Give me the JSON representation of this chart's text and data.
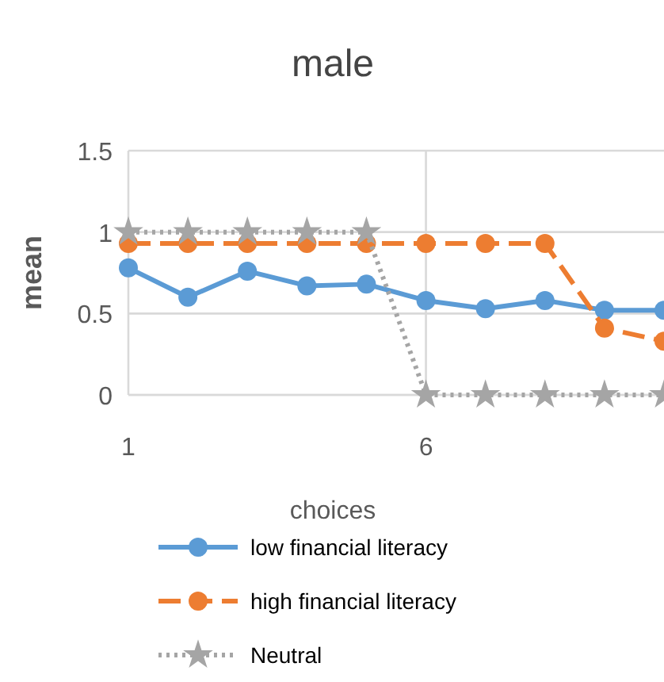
{
  "chart_data": {
    "type": "line",
    "title": "male",
    "xlabel": "choices",
    "ylabel": "mean",
    "x": [
      1,
      2,
      3,
      4,
      5,
      6,
      7,
      8,
      9,
      10
    ],
    "xlim": [
      1,
      10
    ],
    "xticks": [
      1,
      6
    ],
    "ylim": [
      0,
      1.5
    ],
    "yticks": [
      0,
      0.5,
      1,
      1.5
    ],
    "grid": true,
    "legend": "bottom",
    "marker": "circle",
    "series": [
      {
        "name": "low financial literacy",
        "color": "#5b9bd5",
        "line_style": "solid",
        "values": [
          0.78,
          0.6,
          0.76,
          0.67,
          0.68,
          0.58,
          0.53,
          0.58,
          0.52,
          0.52
        ]
      },
      {
        "name": "high financial literacy",
        "color": "#ed7d31",
        "line_style": "dashed",
        "values": [
          0.93,
          0.93,
          0.93,
          0.93,
          0.93,
          0.93,
          0.93,
          0.93,
          0.41,
          0.33
        ]
      },
      {
        "name": "Neutral",
        "color": "#a5a5a5",
        "line_style": "dotted",
        "marker": "star",
        "values": [
          1,
          1,
          1,
          1,
          1,
          0,
          0,
          0,
          0,
          0
        ]
      }
    ]
  }
}
